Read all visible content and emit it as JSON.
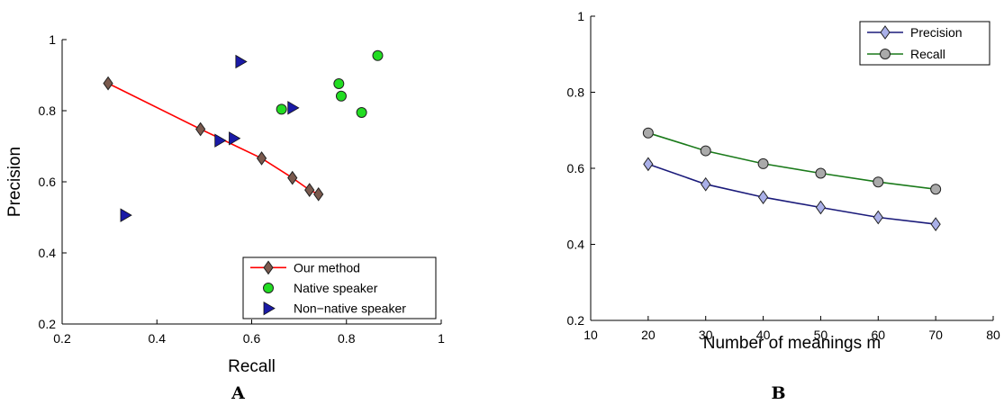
{
  "chart_data": [
    {
      "panel": "A",
      "type": "scatter",
      "xlabel": "Recall",
      "ylabel": "Precision",
      "xlim": [
        0.2,
        1
      ],
      "ylim": [
        0.2,
        1
      ],
      "xticks": [
        "0.2",
        "0.4",
        "0.6",
        "0.8",
        "1"
      ],
      "yticks": [
        "0.2",
        "0.4",
        "0.6",
        "0.8",
        "1"
      ],
      "grid": false,
      "legend_position": "bottom-right",
      "series": [
        {
          "name": "Our method",
          "style": "line-diamond",
          "color": "#ff0000",
          "marker_fill": "#7a5a4e",
          "points": [
            [
              0.297,
              0.877
            ],
            [
              0.492,
              0.748
            ],
            [
              0.621,
              0.666
            ],
            [
              0.686,
              0.611
            ],
            [
              0.722,
              0.577
            ],
            [
              0.741,
              0.565
            ]
          ]
        },
        {
          "name": "Native speaker",
          "style": "circle",
          "color": "#22dd22",
          "points": [
            [
              0.663,
              0.804
            ],
            [
              0.784,
              0.876
            ],
            [
              0.789,
              0.841
            ],
            [
              0.832,
              0.795
            ],
            [
              0.866,
              0.955
            ]
          ]
        },
        {
          "name": "Non−native speaker",
          "style": "triangle-right",
          "color": "#1a1aa6",
          "points": [
            [
              0.333,
              0.506
            ],
            [
              0.532,
              0.716
            ],
            [
              0.562,
              0.722
            ],
            [
              0.576,
              0.938
            ],
            [
              0.686,
              0.808
            ]
          ]
        }
      ]
    },
    {
      "panel": "B",
      "type": "line",
      "xlabel": "Number of meanings m",
      "ylabel": "",
      "xlim": [
        10,
        80
      ],
      "ylim": [
        0.2,
        1
      ],
      "xticks": [
        "10",
        "20",
        "30",
        "40",
        "50",
        "60",
        "70",
        "80"
      ],
      "yticks": [
        "0.2",
        "0.4",
        "0.6",
        "0.8",
        "1"
      ],
      "grid": false,
      "legend_position": "top-right",
      "x": [
        20,
        30,
        40,
        50,
        60,
        70
      ],
      "series": [
        {
          "name": "Precision",
          "style": "line-diamond",
          "color": "#1a1a7a",
          "marker_fill": "#aab0e8",
          "values": [
            0.611,
            0.558,
            0.524,
            0.497,
            0.471,
            0.453
          ]
        },
        {
          "name": "Recall",
          "style": "line-circle",
          "color": "#1a7a1a",
          "marker_fill": "#aaaaaa",
          "values": [
            0.693,
            0.646,
            0.612,
            0.587,
            0.564,
            0.545
          ]
        }
      ]
    }
  ]
}
